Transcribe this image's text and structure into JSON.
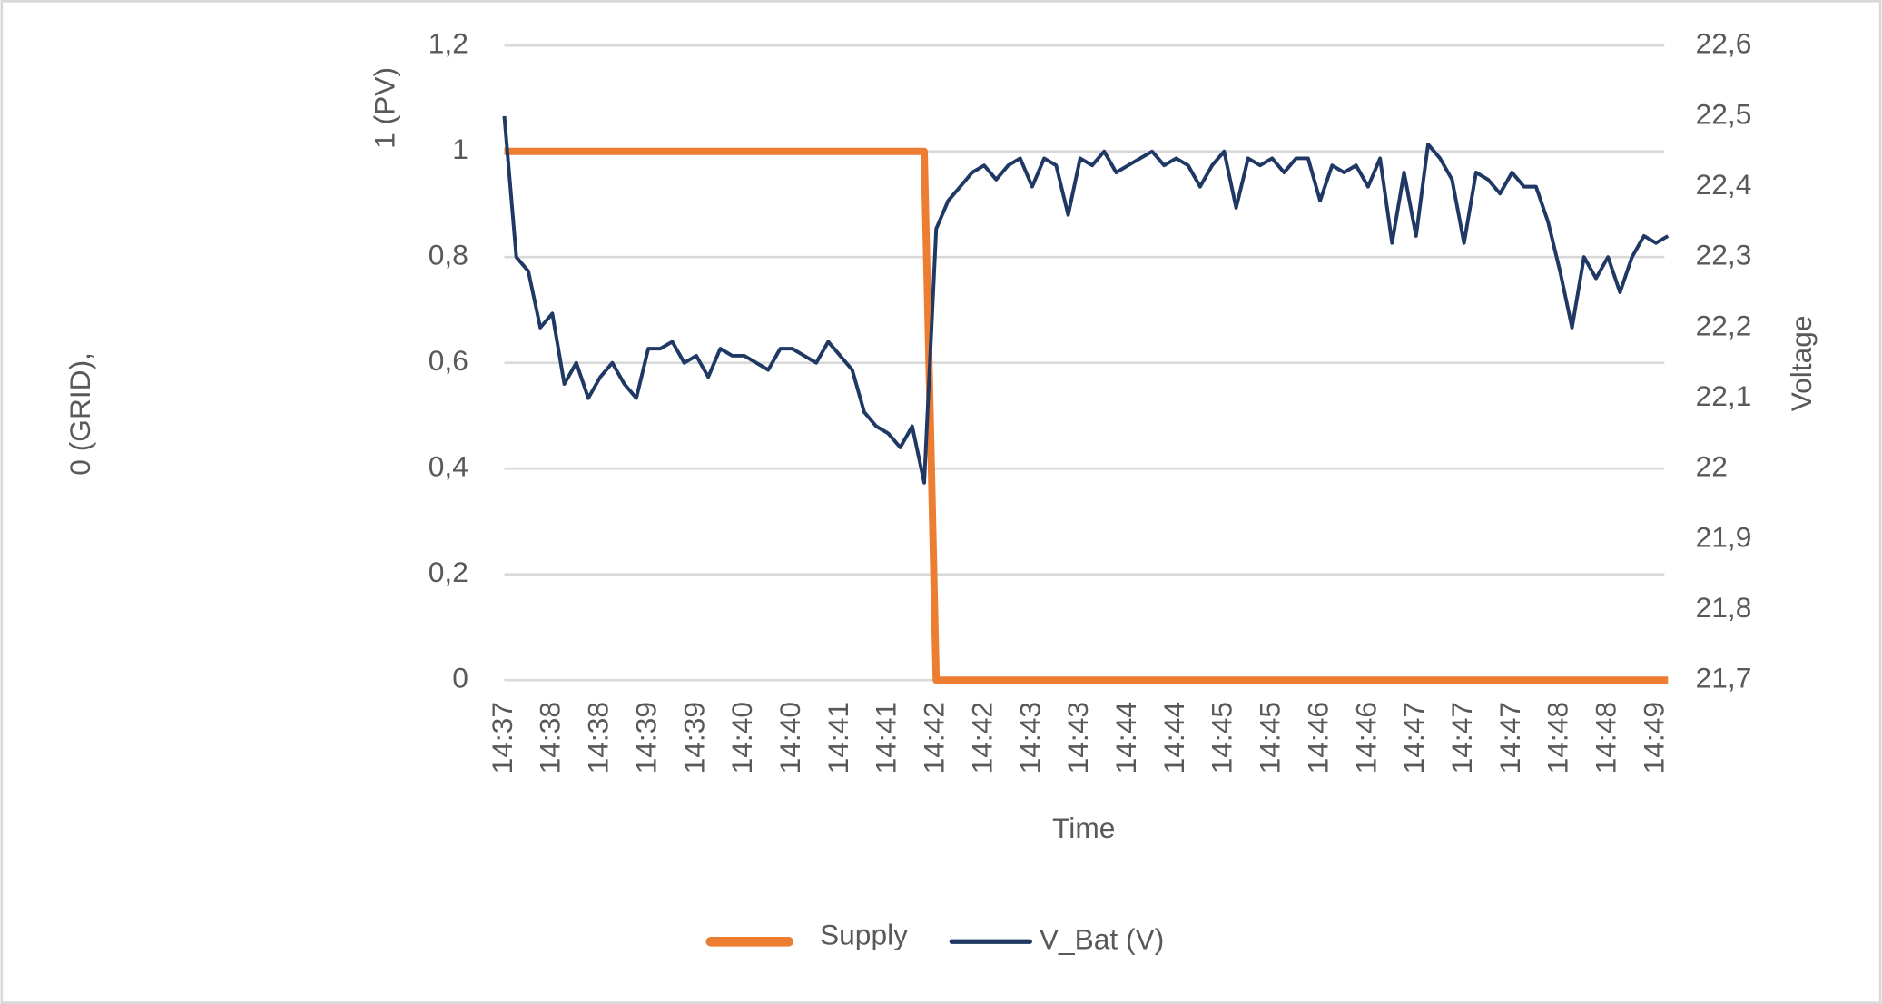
{
  "chart_data": {
    "type": "line",
    "xlabel": "Time",
    "ylabel": [
      "0 (GRID),",
      "1 (PV)"
    ],
    "y2label": "Voltage",
    "categories": [
      "14:37",
      null,
      null,
      null,
      "14:38",
      null,
      null,
      null,
      "14:38",
      null,
      null,
      null,
      "14:39",
      null,
      null,
      null,
      "14:39",
      null,
      null,
      null,
      "14:40",
      null,
      null,
      null,
      "14:40",
      null,
      null,
      null,
      "14:41",
      null,
      null,
      null,
      "14:41",
      null,
      null,
      null,
      "14:42",
      null,
      null,
      null,
      "14:42",
      null,
      null,
      null,
      "14:43",
      null,
      null,
      null,
      "14:43",
      null,
      null,
      null,
      "14:44",
      null,
      null,
      null,
      "14:44",
      null,
      null,
      null,
      "14:45",
      null,
      null,
      null,
      "14:45",
      null,
      null,
      null,
      "14:46",
      null,
      null,
      null,
      "14:46",
      null,
      null,
      null,
      "14:47",
      null,
      null,
      null,
      "14:47",
      null,
      null,
      null,
      "14:47",
      null,
      null,
      null,
      "14:48",
      null,
      null,
      null,
      "14:48",
      null,
      null,
      null,
      "14:49",
      null
    ],
    "series": [
      {
        "name": "Supply",
        "color": "#ed7d31",
        "width": 6,
        "values": [
          1,
          1,
          1,
          1,
          1,
          1,
          1,
          1,
          1,
          1,
          1,
          1,
          1,
          1,
          1,
          1,
          1,
          1,
          1,
          1,
          1,
          1,
          1,
          1,
          1,
          1,
          1,
          1,
          1,
          1,
          1,
          1,
          1,
          1,
          1,
          1,
          0,
          0,
          0,
          0,
          0,
          0,
          0,
          0,
          0,
          0,
          0,
          0,
          0,
          0,
          0,
          0,
          0,
          0,
          0,
          0,
          0,
          0,
          0,
          0,
          0,
          0,
          0,
          0,
          0,
          0,
          0,
          0,
          0,
          0,
          0,
          0,
          0,
          0,
          0,
          0,
          0,
          0,
          0,
          0,
          0,
          0,
          0,
          0,
          0,
          0,
          0,
          0,
          0,
          0,
          0,
          0,
          0,
          0,
          0,
          0,
          0,
          0
        ]
      },
      {
        "name": "V_Bat (V)",
        "color": "#1f3864",
        "width": 3,
        "axis": "y2",
        "values": [
          22.5,
          22.3,
          22.28,
          22.2,
          22.22,
          22.12,
          22.15,
          22.1,
          22.13,
          22.15,
          22.12,
          22.1,
          22.17,
          22.17,
          22.18,
          22.15,
          22.16,
          22.13,
          22.17,
          22.16,
          22.16,
          22.15,
          22.14,
          22.17,
          22.17,
          22.16,
          22.15,
          22.18,
          22.16,
          22.14,
          22.08,
          22.06,
          22.05,
          22.03,
          22.06,
          21.98,
          22.34,
          22.38,
          22.4,
          22.42,
          22.43,
          22.41,
          22.43,
          22.44,
          22.4,
          22.44,
          22.43,
          22.36,
          22.44,
          22.43,
          22.45,
          22.42,
          22.43,
          22.44,
          22.45,
          22.43,
          22.44,
          22.43,
          22.4,
          22.43,
          22.45,
          22.37,
          22.44,
          22.43,
          22.44,
          22.42,
          22.44,
          22.44,
          22.38,
          22.43,
          22.42,
          22.43,
          22.4,
          22.44,
          22.32,
          22.42,
          22.33,
          22.46,
          22.44,
          22.41,
          22.32,
          22.42,
          22.41,
          22.39,
          22.42,
          22.4,
          22.4,
          22.35,
          22.28,
          22.2,
          22.3,
          22.27,
          22.3,
          22.25,
          22.3,
          22.33,
          22.32,
          22.33
        ]
      }
    ],
    "ylim": [
      0,
      1.2
    ],
    "yticks": [
      0,
      {
        "value": 0.2,
        "label": "0,2"
      },
      {
        "value": 0.4,
        "label": "0,4"
      },
      {
        "value": 0.6,
        "label": "0,6"
      },
      {
        "value": 0.8,
        "label": "0,8"
      },
      1,
      {
        "value": 1.2,
        "label": "1,2"
      }
    ],
    "y2lim": [
      21.7,
      22.6
    ],
    "y2ticks": [
      {
        "value": 21.7,
        "label": "21,7"
      },
      {
        "value": 21.8,
        "label": "21,8"
      },
      {
        "value": 21.9,
        "label": "21,9"
      },
      22,
      {
        "value": 22.1,
        "label": "22,1"
      },
      {
        "value": 22.2,
        "label": "22,2"
      },
      {
        "value": 22.3,
        "label": "22,3"
      },
      {
        "value": 22.4,
        "label": "22,4"
      },
      {
        "value": 22.5,
        "label": "22,5"
      },
      {
        "value": 22.6,
        "label": "22,6"
      }
    ],
    "grid": true,
    "legend": "bottom"
  }
}
